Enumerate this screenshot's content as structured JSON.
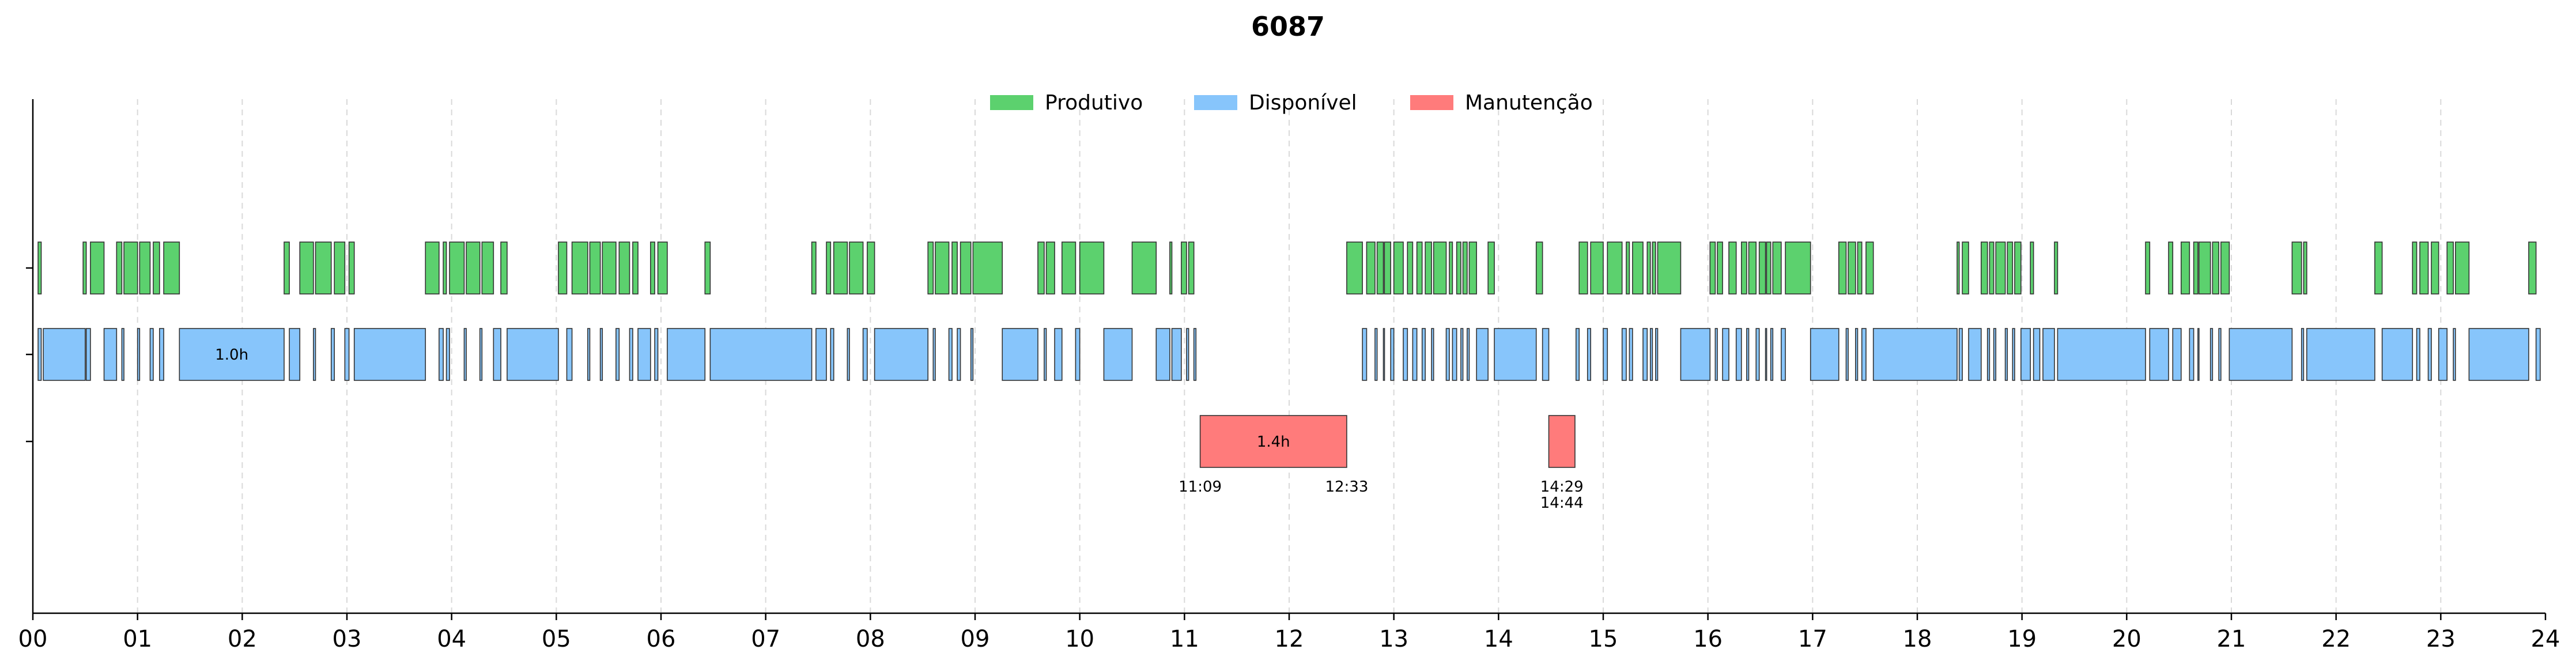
{
  "chart_data": {
    "type": "timeline",
    "title": "6087",
    "xlabel": "",
    "ylabel": "",
    "x_range": [
      0,
      24
    ],
    "x_unit": "hours",
    "x_ticks": [
      "00",
      "01",
      "02",
      "03",
      "04",
      "05",
      "06",
      "07",
      "08",
      "09",
      "10",
      "11",
      "12",
      "13",
      "14",
      "15",
      "16",
      "17",
      "18",
      "19",
      "20",
      "21",
      "22",
      "23",
      "24"
    ],
    "grid": "vertical dashed at each hour",
    "legend": {
      "placement": "top-center",
      "entries": [
        {
          "label": "Produtivo",
          "color": "#5cd16e"
        },
        {
          "label": "Disponível",
          "color": "#87c5fb"
        },
        {
          "label": "Manutenção",
          "color": "#ff7b7b"
        }
      ]
    },
    "series": [
      {
        "name": "Produtivo",
        "color": "#5cd16e",
        "intervals": [
          [
            0.05,
            0.08
          ],
          [
            0.48,
            0.51
          ],
          [
            0.55,
            0.68
          ],
          [
            0.8,
            0.85
          ],
          [
            0.87,
            1.0
          ],
          [
            1.02,
            1.12
          ],
          [
            1.15,
            1.21
          ],
          [
            1.25,
            1.4
          ],
          [
            2.4,
            2.45
          ],
          [
            2.55,
            2.68
          ],
          [
            2.7,
            2.85
          ],
          [
            2.88,
            2.98
          ],
          [
            3.02,
            3.07
          ],
          [
            3.75,
            3.88
          ],
          [
            3.92,
            3.95
          ],
          [
            3.98,
            4.12
          ],
          [
            4.14,
            4.27
          ],
          [
            4.29,
            4.4
          ],
          [
            4.47,
            4.53
          ],
          [
            5.02,
            5.1
          ],
          [
            5.15,
            5.3
          ],
          [
            5.32,
            5.42
          ],
          [
            5.44,
            5.57
          ],
          [
            5.6,
            5.7
          ],
          [
            5.73,
            5.78
          ],
          [
            5.9,
            5.94
          ],
          [
            5.97,
            6.06
          ],
          [
            6.42,
            6.47
          ],
          [
            7.44,
            7.48
          ],
          [
            7.58,
            7.62
          ],
          [
            7.65,
            7.78
          ],
          [
            7.8,
            7.93
          ],
          [
            7.97,
            8.04
          ],
          [
            8.55,
            8.6
          ],
          [
            8.62,
            8.75
          ],
          [
            8.78,
            8.83
          ],
          [
            8.86,
            8.96
          ],
          [
            8.98,
            9.26
          ],
          [
            9.6,
            9.66
          ],
          [
            9.68,
            9.76
          ],
          [
            9.83,
            9.96
          ],
          [
            10.0,
            10.23
          ],
          [
            10.5,
            10.73
          ],
          [
            10.86,
            10.88
          ],
          [
            10.97,
            11.02
          ],
          [
            11.04,
            11.09
          ],
          [
            12.55,
            12.7
          ],
          [
            12.74,
            12.82
          ],
          [
            12.84,
            12.9
          ],
          [
            12.91,
            12.97
          ],
          [
            13.0,
            13.09
          ],
          [
            13.13,
            13.18
          ],
          [
            13.22,
            13.27
          ],
          [
            13.3,
            13.36
          ],
          [
            13.38,
            13.5
          ],
          [
            13.53,
            13.56
          ],
          [
            13.6,
            13.64
          ],
          [
            13.66,
            13.7
          ],
          [
            13.72,
            13.79
          ],
          [
            13.9,
            13.96
          ],
          [
            14.36,
            14.42
          ],
          [
            14.77,
            14.85
          ],
          [
            14.88,
            15.0
          ],
          [
            15.04,
            15.18
          ],
          [
            15.22,
            15.25
          ],
          [
            15.28,
            15.38
          ],
          [
            15.42,
            15.45
          ],
          [
            15.47,
            15.5
          ],
          [
            15.52,
            15.74
          ],
          [
            16.02,
            16.07
          ],
          [
            16.09,
            16.14
          ],
          [
            16.2,
            16.27
          ],
          [
            16.32,
            16.37
          ],
          [
            16.39,
            16.46
          ],
          [
            16.49,
            16.55
          ],
          [
            16.56,
            16.6
          ],
          [
            16.62,
            16.7
          ],
          [
            16.74,
            16.98
          ],
          [
            17.25,
            17.32
          ],
          [
            17.34,
            17.41
          ],
          [
            17.43,
            17.47
          ],
          [
            17.51,
            17.58
          ],
          [
            18.38,
            18.4
          ],
          [
            18.43,
            18.49
          ],
          [
            18.61,
            18.67
          ],
          [
            18.69,
            18.73
          ],
          [
            18.75,
            18.84
          ],
          [
            18.86,
            18.91
          ],
          [
            18.93,
            18.99
          ],
          [
            19.08,
            19.11
          ],
          [
            19.31,
            19.34
          ],
          [
            20.18,
            20.22
          ],
          [
            20.4,
            20.44
          ],
          [
            20.52,
            20.6
          ],
          [
            20.64,
            20.68
          ],
          [
            20.69,
            20.8
          ],
          [
            20.82,
            20.88
          ],
          [
            20.9,
            20.98
          ],
          [
            21.58,
            21.67
          ],
          [
            21.69,
            21.72
          ],
          [
            22.37,
            22.44
          ],
          [
            22.73,
            22.77
          ],
          [
            22.8,
            22.88
          ],
          [
            22.91,
            22.98
          ],
          [
            23.06,
            23.12
          ],
          [
            23.14,
            23.27
          ],
          [
            23.84,
            23.91
          ]
        ]
      },
      {
        "name": "Disponível",
        "color": "#87c5fb",
        "intervals": [
          [
            0.05,
            0.08
          ],
          [
            0.1,
            0.5
          ],
          [
            0.51,
            0.55
          ],
          [
            0.68,
            0.8
          ],
          [
            0.85,
            0.87
          ],
          [
            1.0,
            1.02
          ],
          [
            1.12,
            1.15
          ],
          [
            1.21,
            1.25
          ],
          [
            1.4,
            2.4,
            "1.0h"
          ],
          [
            2.45,
            2.55
          ],
          [
            2.68,
            2.7
          ],
          [
            2.85,
            2.88
          ],
          [
            2.98,
            3.02
          ],
          [
            3.07,
            3.75
          ],
          [
            3.88,
            3.92
          ],
          [
            3.95,
            3.98
          ],
          [
            4.12,
            4.14
          ],
          [
            4.27,
            4.29
          ],
          [
            4.4,
            4.47
          ],
          [
            4.53,
            5.02
          ],
          [
            5.1,
            5.15
          ],
          [
            5.3,
            5.32
          ],
          [
            5.42,
            5.44
          ],
          [
            5.57,
            5.6
          ],
          [
            5.7,
            5.73
          ],
          [
            5.78,
            5.9
          ],
          [
            5.94,
            5.97
          ],
          [
            6.06,
            6.42
          ],
          [
            6.47,
            7.44
          ],
          [
            7.48,
            7.58
          ],
          [
            7.62,
            7.65
          ],
          [
            7.78,
            7.8
          ],
          [
            7.93,
            7.97
          ],
          [
            8.04,
            8.55
          ],
          [
            8.6,
            8.62
          ],
          [
            8.75,
            8.78
          ],
          [
            8.83,
            8.86
          ],
          [
            8.96,
            8.98
          ],
          [
            9.26,
            9.6
          ],
          [
            9.66,
            9.68
          ],
          [
            9.76,
            9.83
          ],
          [
            9.96,
            10.0
          ],
          [
            10.23,
            10.5
          ],
          [
            10.73,
            10.86
          ],
          [
            10.88,
            10.97
          ],
          [
            11.02,
            11.04
          ],
          [
            11.09,
            11.11
          ],
          [
            12.7,
            12.74
          ],
          [
            12.82,
            12.84
          ],
          [
            12.9,
            12.91
          ],
          [
            12.97,
            13.0
          ],
          [
            13.09,
            13.13
          ],
          [
            13.18,
            13.22
          ],
          [
            13.27,
            13.3
          ],
          [
            13.36,
            13.38
          ],
          [
            13.5,
            13.53
          ],
          [
            13.56,
            13.6
          ],
          [
            13.64,
            13.66
          ],
          [
            13.7,
            13.72
          ],
          [
            13.79,
            13.9
          ],
          [
            13.96,
            14.36
          ],
          [
            14.42,
            14.48
          ],
          [
            14.74,
            14.77
          ],
          [
            14.85,
            14.88
          ],
          [
            15.0,
            15.04
          ],
          [
            15.18,
            15.22
          ],
          [
            15.25,
            15.28
          ],
          [
            15.38,
            15.42
          ],
          [
            15.45,
            15.47
          ],
          [
            15.5,
            15.52
          ],
          [
            15.74,
            16.02
          ],
          [
            16.07,
            16.09
          ],
          [
            16.14,
            16.2
          ],
          [
            16.27,
            16.32
          ],
          [
            16.37,
            16.39
          ],
          [
            16.46,
            16.49
          ],
          [
            16.55,
            16.56
          ],
          [
            16.6,
            16.62
          ],
          [
            16.7,
            16.74
          ],
          [
            16.98,
            17.25
          ],
          [
            17.32,
            17.34
          ],
          [
            17.41,
            17.43
          ],
          [
            17.47,
            17.51
          ],
          [
            17.58,
            18.38
          ],
          [
            18.4,
            18.43
          ],
          [
            18.49,
            18.61
          ],
          [
            18.67,
            18.69
          ],
          [
            18.73,
            18.75
          ],
          [
            18.84,
            18.86
          ],
          [
            18.91,
            18.93
          ],
          [
            18.99,
            19.08
          ],
          [
            19.11,
            19.17
          ],
          [
            19.2,
            19.31
          ],
          [
            19.34,
            20.18
          ],
          [
            20.22,
            20.4
          ],
          [
            20.44,
            20.52
          ],
          [
            20.6,
            20.64
          ],
          [
            20.68,
            20.69
          ],
          [
            20.8,
            20.82
          ],
          [
            20.88,
            20.9
          ],
          [
            20.98,
            21.58
          ],
          [
            21.67,
            21.69
          ],
          [
            21.72,
            22.37
          ],
          [
            22.44,
            22.73
          ],
          [
            22.77,
            22.8
          ],
          [
            22.88,
            22.91
          ],
          [
            22.98,
            23.06
          ],
          [
            23.12,
            23.14
          ],
          [
            23.27,
            23.84
          ],
          [
            23.91,
            23.95
          ]
        ]
      },
      {
        "name": "Manutenção",
        "color": "#ff7b7b",
        "intervals": [
          [
            11.15,
            12.55,
            "1.4h",
            "11:09",
            "12:33"
          ],
          [
            14.48,
            14.73,
            "",
            "14:29",
            "14:44"
          ]
        ]
      }
    ]
  }
}
